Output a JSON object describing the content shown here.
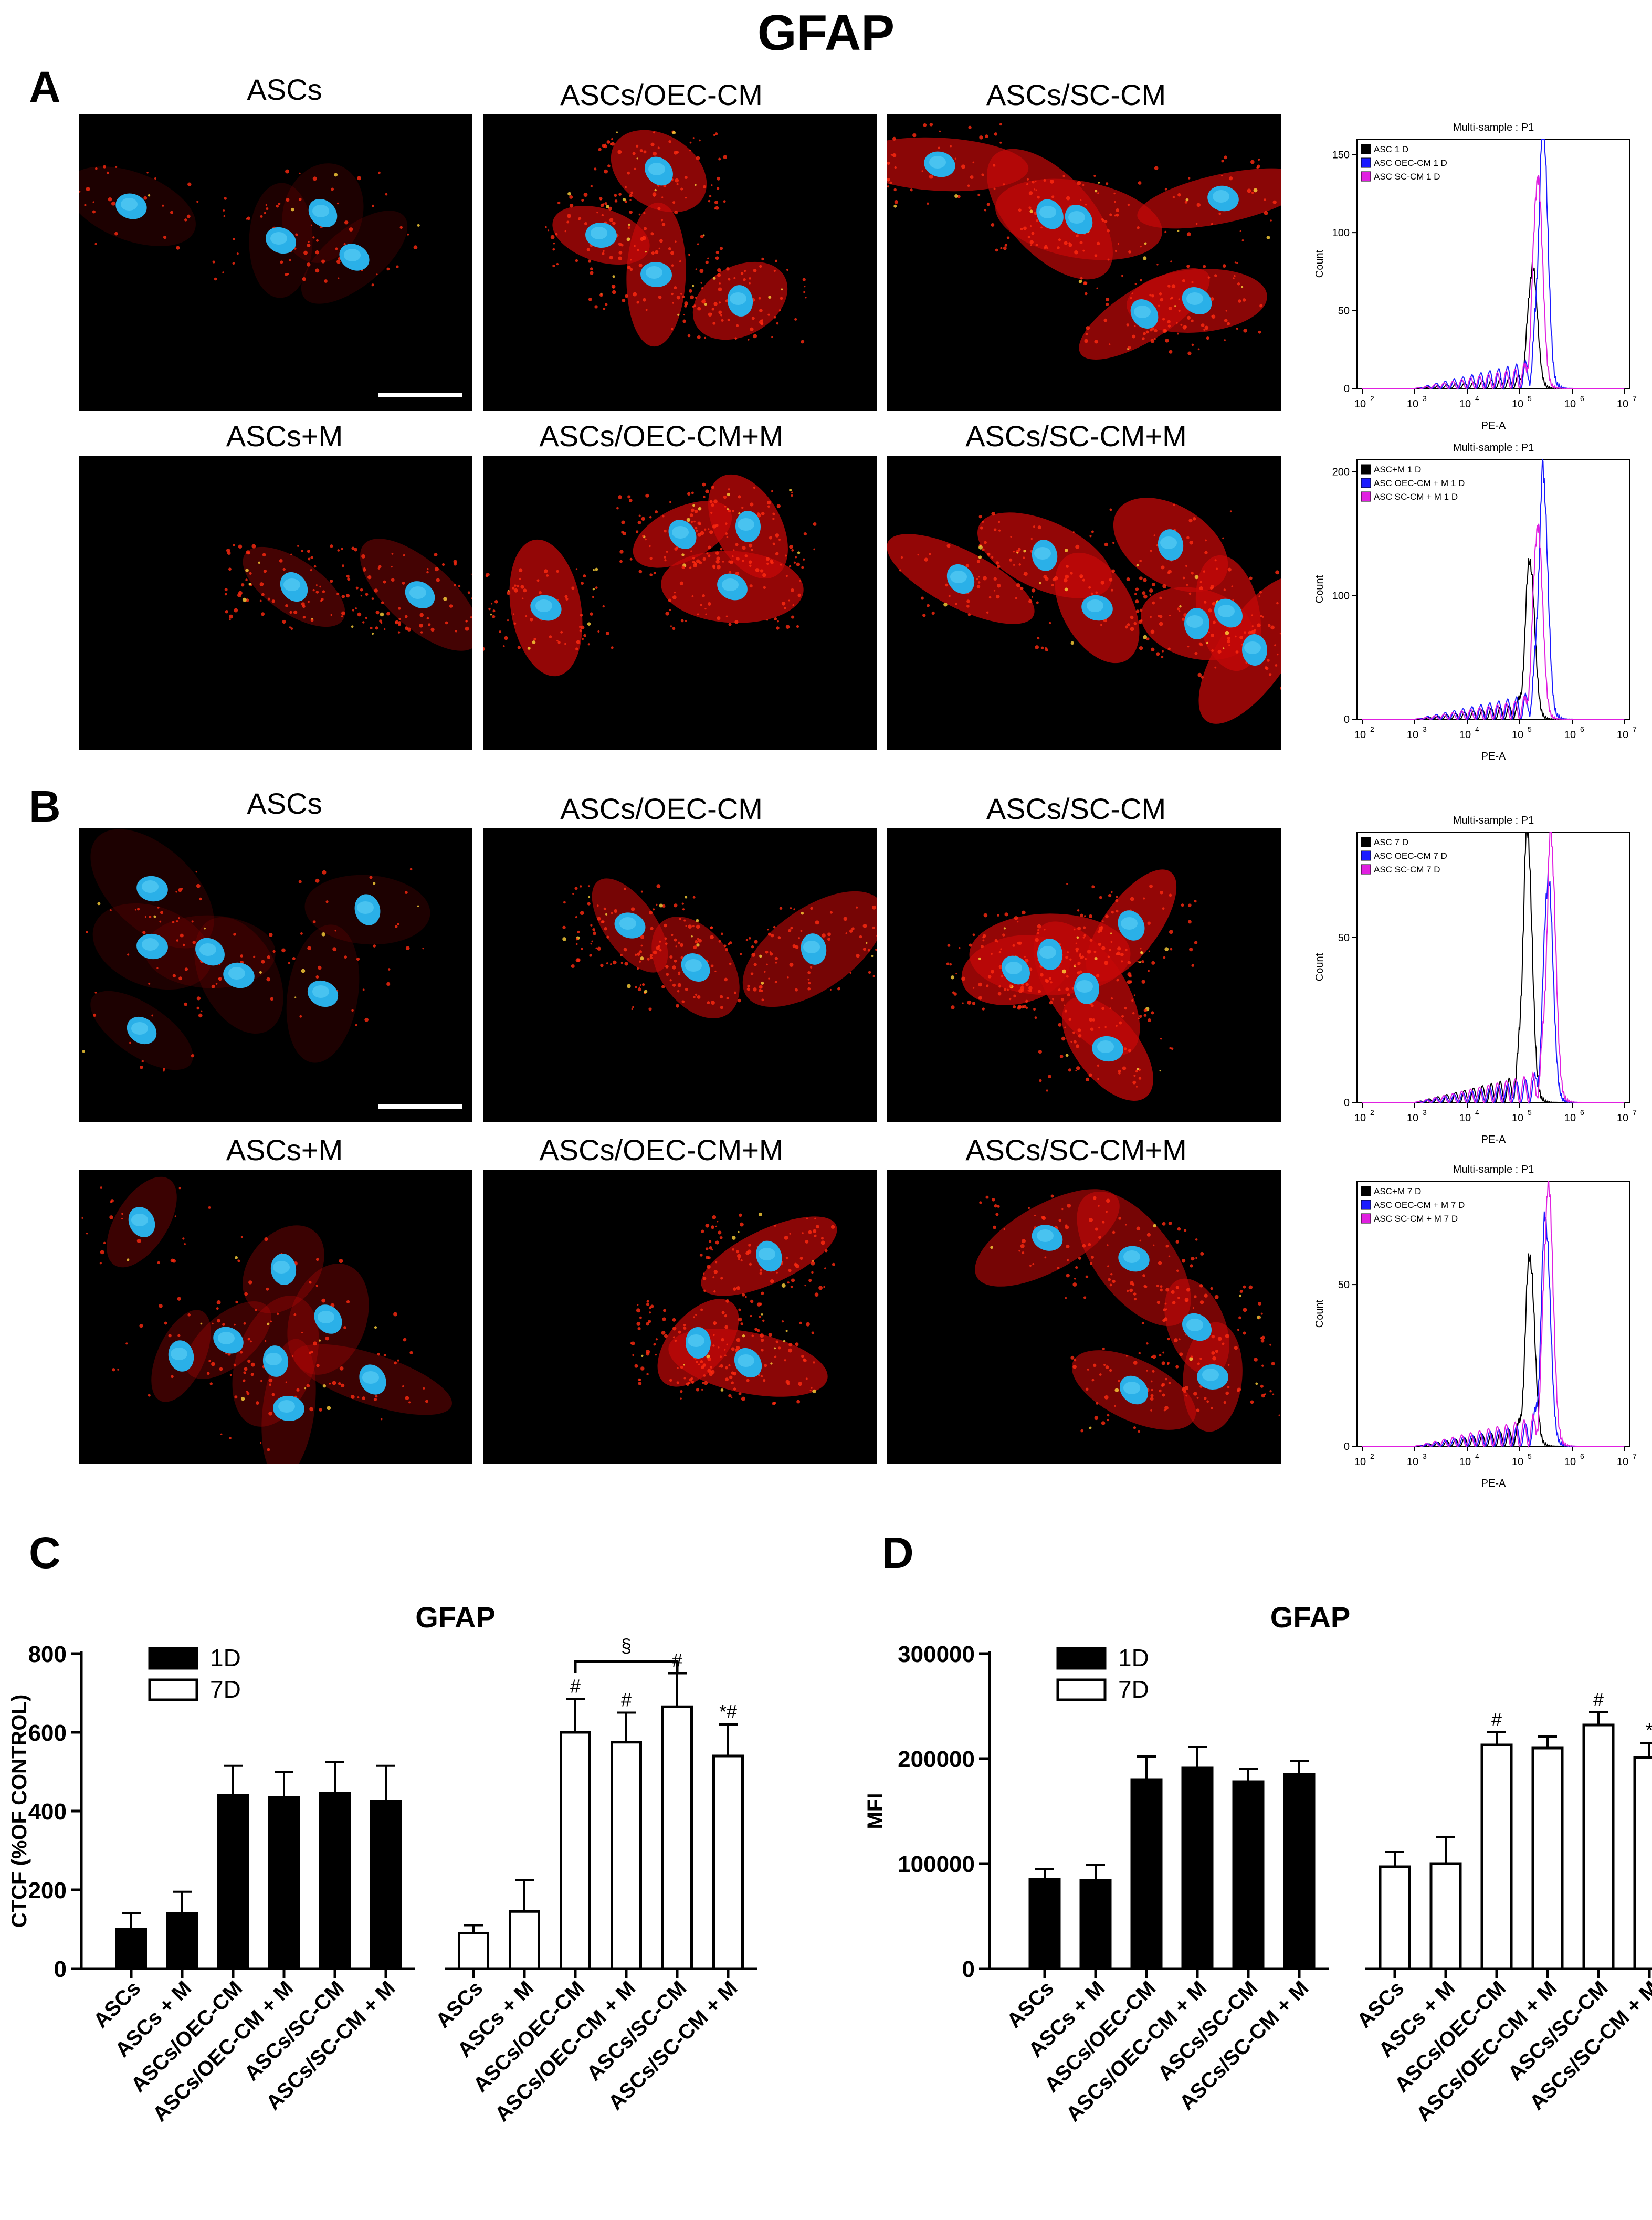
{
  "figure_title": "GFAP",
  "panels": {
    "A": {
      "letter": "A",
      "row1_labels": [
        "ASCs",
        "ASCs/OEC-CM",
        "ASCs/SC-CM"
      ],
      "row2_labels": [
        "ASCs+M",
        "ASCs/OEC-CM+M",
        "ASCs/SC-CM+M"
      ]
    },
    "B": {
      "letter": "B",
      "row1_labels": [
        "ASCs",
        "ASCs/OEC-CM",
        "ASCs/SC-CM"
      ],
      "row2_labels": [
        "ASCs+M",
        "ASCs/OEC-CM+M",
        "ASCs/SC-CM+M"
      ]
    },
    "C": {
      "letter": "C"
    },
    "D": {
      "letter": "D"
    }
  },
  "histograms": [
    {
      "title": "Multi-sample : P1",
      "legend": [
        "ASC 1 D",
        "ASC OEC-CM 1 D",
        "ASC SC-CM 1 D"
      ],
      "ylabel": "Count",
      "xlabel": "PE-A",
      "yticks": [
        "0",
        "50",
        "100",
        "150"
      ],
      "ymax": 160,
      "peaks": [
        75,
        160,
        130
      ],
      "mu": [
        5.25,
        5.45,
        5.35
      ]
    },
    {
      "title": "Multi-sample : P1",
      "legend": [
        "ASC+M 1 D",
        "ASC OEC-CM + M 1 D",
        "ASC SC-CM + M 1 D"
      ],
      "ylabel": "Count",
      "xlabel": "PE-A",
      "yticks": [
        "0",
        "100",
        "200"
      ],
      "ymax": 210,
      "peaks": [
        120,
        185,
        150
      ],
      "mu": [
        5.2,
        5.45,
        5.35
      ]
    },
    {
      "title": "Multi-sample : P1",
      "legend": [
        "ASC 7 D",
        "ASC OEC-CM 7 D",
        "ASC SC-CM 7 D"
      ],
      "ylabel": "Count",
      "xlabel": "PE-A",
      "yticks": [
        "0",
        "50"
      ],
      "ymax": 82,
      "peaks": [
        78,
        65,
        75
      ],
      "mu": [
        5.15,
        5.55,
        5.6
      ]
    },
    {
      "title": "Multi-sample : P1",
      "legend": [
        "ASC+M  7 D",
        "ASC OEC-CM + M 7 D",
        "ASC SC-CM + M 7 D"
      ],
      "ylabel": "Count",
      "xlabel": "PE-A",
      "yticks": [
        "0",
        "50"
      ],
      "ymax": 82,
      "peaks": [
        55,
        65,
        78
      ],
      "mu": [
        5.2,
        5.5,
        5.55
      ]
    }
  ],
  "hist_xticks": [
    "10",
    "10",
    "10",
    "10",
    "10",
    "10"
  ],
  "hist_xexp": [
    "2",
    "3",
    "4",
    "5",
    "6",
    "7"
  ],
  "legend_colors": [
    "#000000",
    "#1a1aff",
    "#e020e0"
  ],
  "chart_data": [
    {
      "type": "bar",
      "title": "GFAP",
      "ylabel": "CTCF (%OF CONTROL)",
      "ylim": [
        0,
        800
      ],
      "yticks": [
        "0",
        "200",
        "400",
        "600",
        "800"
      ],
      "legend": [
        "1D",
        "7D"
      ],
      "legend_placement": "top-left",
      "categories": [
        "ASCs",
        "ASCs + M",
        "ASCs/OEC-CM",
        "ASCs/OEC-CM + M",
        "ASCs/SC-CM",
        "ASCs/SC-CM + M"
      ],
      "series": [
        {
          "name": "1D",
          "values": [
            100,
            140,
            440,
            435,
            445,
            425
          ],
          "errors": [
            40,
            55,
            75,
            65,
            80,
            90
          ],
          "annotations": [
            "",
            "",
            "",
            "",
            "",
            ""
          ]
        },
        {
          "name": "7D",
          "values": [
            90,
            145,
            600,
            575,
            665,
            540
          ],
          "errors": [
            20,
            80,
            85,
            75,
            85,
            80
          ],
          "annotations": [
            "",
            "",
            "#",
            "#",
            "#",
            "*#"
          ]
        }
      ],
      "bracket_label": "§"
    },
    {
      "type": "bar",
      "title": "GFAP",
      "ylabel": "MFI",
      "ylim": [
        0,
        300000
      ],
      "yticks": [
        "0",
        "100000",
        "200000",
        "300000"
      ],
      "legend": [
        "1D",
        "7D"
      ],
      "legend_placement": "top-left",
      "categories": [
        "ASCs",
        "ASCs + M",
        "ASCs/OEC-CM",
        "ASCs/OEC-CM + M",
        "ASCs/SC-CM",
        "ASCs/SC-CM + M"
      ],
      "series": [
        {
          "name": "1D",
          "values": [
            85000,
            84000,
            180000,
            191000,
            178000,
            185000
          ],
          "errors": [
            10000,
            15000,
            22000,
            20000,
            12000,
            13000
          ],
          "annotations": [
            "",
            "",
            "",
            "",
            "",
            ""
          ]
        },
        {
          "name": "7D",
          "values": [
            97000,
            100000,
            213000,
            210000,
            232000,
            201000
          ],
          "errors": [
            14000,
            25000,
            12000,
            11000,
            12000,
            14000
          ],
          "annotations": [
            "",
            "",
            "#",
            "",
            "#",
            "*"
          ]
        }
      ]
    }
  ]
}
